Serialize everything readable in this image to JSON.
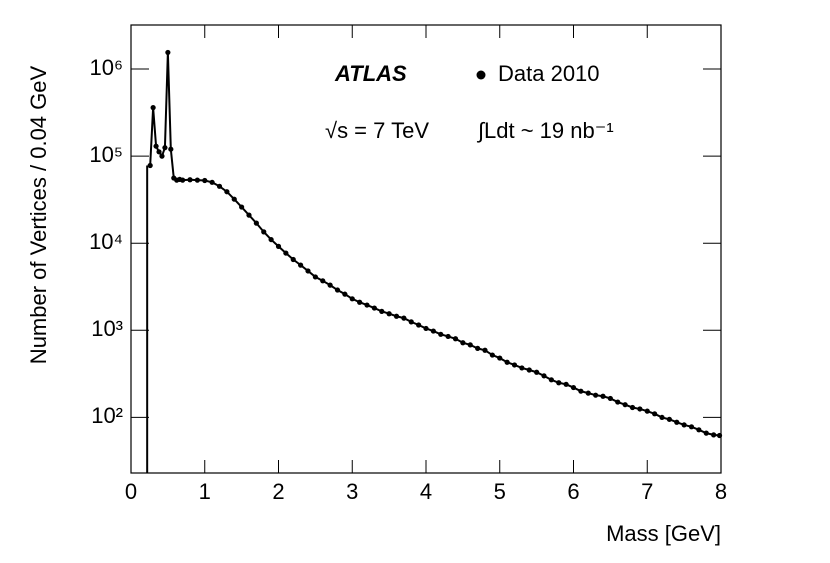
{
  "chart_data": {
    "type": "line",
    "experiment": "ATLAS",
    "energy_label": "√s = 7 TeV",
    "lumi_label": "∫Ldt ~ 19 nb⁻¹",
    "x_label": "Mass [GeV]",
    "y_label": "Number of Vertices / 0.04 GeV",
    "log_y": true,
    "xlim": [
      0,
      8
    ],
    "xticks": [
      0,
      1,
      2,
      3,
      4,
      5,
      6,
      7,
      8
    ],
    "ylim": [
      23,
      3200000
    ],
    "yticks": [
      {
        "value": 100,
        "label": "10²"
      },
      {
        "value": 1000,
        "label": "10³"
      },
      {
        "value": 10000,
        "label": "10⁴"
      },
      {
        "value": 100000,
        "label": "10⁵"
      },
      {
        "value": 1000000,
        "label": "10⁶"
      }
    ],
    "x": [
      0.26,
      0.3,
      0.34,
      0.38,
      0.42,
      0.46,
      0.5,
      0.54,
      0.58,
      0.62,
      0.66,
      0.7,
      0.8,
      0.9,
      1.0,
      1.1,
      1.2,
      1.3,
      1.4,
      1.5,
      1.6,
      1.7,
      1.8,
      1.9,
      2.0,
      2.1,
      2.2,
      2.3,
      2.4,
      2.5,
      2.6,
      2.7,
      2.8,
      2.9,
      3.0,
      3.1,
      3.2,
      3.3,
      3.4,
      3.5,
      3.6,
      3.7,
      3.8,
      3.9,
      4.0,
      4.1,
      4.2,
      4.3,
      4.4,
      4.5,
      4.6,
      4.7,
      4.8,
      4.9,
      5.0,
      5.1,
      5.2,
      5.3,
      5.4,
      5.5,
      5.6,
      5.7,
      5.8,
      5.9,
      6.0,
      6.1,
      6.2,
      6.3,
      6.4,
      6.5,
      6.6,
      6.7,
      6.8,
      6.9,
      7.0,
      7.1,
      7.2,
      7.3,
      7.4,
      7.5,
      7.6,
      7.7,
      7.8,
      7.9,
      7.98
    ],
    "series": [
      {
        "name": "Data 2010",
        "color": "#000000",
        "values": [
          78000,
          360000,
          130000,
          112000,
          100000,
          125000,
          1550000,
          120000,
          56000,
          53000,
          54000,
          53000,
          53500,
          53000,
          52500,
          50000,
          45000,
          39000,
          32000,
          26000,
          21000,
          17000,
          13500,
          11000,
          9200,
          7700,
          6500,
          5600,
          4800,
          4100,
          3700,
          3300,
          2900,
          2600,
          2300,
          2100,
          1950,
          1800,
          1650,
          1550,
          1450,
          1380,
          1250,
          1150,
          1050,
          980,
          900,
          850,
          800,
          720,
          680,
          620,
          590,
          520,
          480,
          430,
          400,
          370,
          350,
          330,
          300,
          270,
          250,
          240,
          220,
          200,
          190,
          180,
          175,
          165,
          150,
          140,
          130,
          125,
          118,
          110,
          100,
          95,
          88,
          82,
          78,
          72,
          66,
          63,
          62
        ]
      }
    ]
  }
}
